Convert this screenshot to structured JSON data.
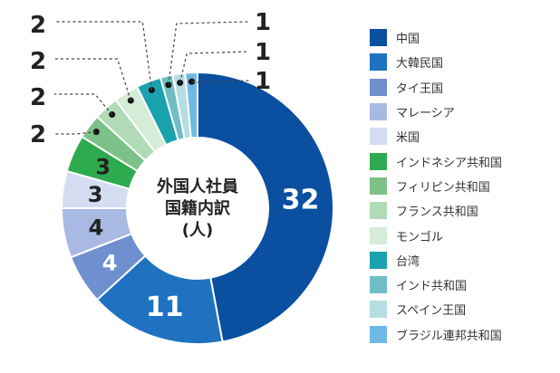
{
  "chart_data": {
    "type": "pie",
    "variant": "donut",
    "center_title": [
      "外国人社員",
      "国籍内訳",
      "(人)"
    ],
    "categories": [
      "中国",
      "大韓民国",
      "タイ王国",
      "マレーシア",
      "米国",
      "インドネシア共和国",
      "フィリピン共和国",
      "フランス共和国",
      "モンゴル",
      "台湾",
      "インド共和国",
      "スペイン王国",
      "ブラジル連邦共和国"
    ],
    "values": [
      32,
      11,
      4,
      4,
      3,
      3,
      2,
      2,
      2,
      2,
      1,
      1,
      1
    ],
    "value_labels": [
      "32",
      "11",
      "4",
      "4",
      "3",
      "3",
      "2",
      "2",
      "2",
      "2",
      "1",
      "1",
      "1"
    ],
    "colors": [
      "#0a4fa0",
      "#1e72c0",
      "#6f8fcf",
      "#a8b9e2",
      "#d3dcf1",
      "#2eaa4f",
      "#7cc188",
      "#b1dbb7",
      "#d5ecd6",
      "#1aa2ae",
      "#6fbec5",
      "#b6dde1",
      "#6fb9e6"
    ],
    "legend_position": "right"
  }
}
